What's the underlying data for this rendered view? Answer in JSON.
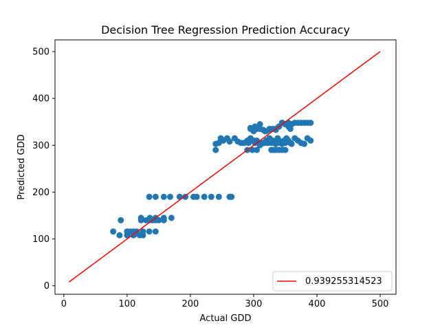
{
  "chart_data": {
    "type": "scatter",
    "title": "Decision Tree Regression Prediction Accuracy",
    "xlabel": "Actual GDD",
    "ylabel": "Predicted GDD",
    "xlim": [
      -14,
      525
    ],
    "ylim": [
      -18,
      525
    ],
    "xticks": [
      0,
      100,
      200,
      300,
      400,
      500
    ],
    "yticks": [
      0,
      100,
      200,
      300,
      400,
      500
    ],
    "grid": false,
    "legend_position": "lower-right",
    "series": [
      {
        "kind": "scatter",
        "color": "#1f77b4",
        "x": [
          78,
          88,
          90,
          100,
          100,
          100,
          105,
          110,
          110,
          112,
          115,
          120,
          122,
          122,
          125,
          125,
          130,
          135,
          135,
          136,
          140,
          145,
          145,
          145,
          150,
          158,
          158,
          170,
          135,
          145,
          158,
          168,
          183,
          192,
          205,
          210,
          222,
          233,
          245,
          262,
          265,
          240,
          240,
          245,
          248,
          252,
          258,
          262,
          270,
          275,
          280,
          285,
          290,
          292,
          295,
          298,
          300,
          302,
          305,
          308,
          312,
          315,
          318,
          320,
          322,
          325,
          328,
          330,
          332,
          335,
          338,
          340,
          342,
          345,
          348,
          350,
          352,
          355,
          358,
          360,
          365,
          370,
          375,
          380,
          385,
          390,
          295,
          300,
          305,
          310,
          315,
          320,
          325,
          330,
          335,
          340,
          345,
          350,
          355,
          360,
          365,
          370,
          375,
          380,
          385,
          390,
          290,
          298,
          305,
          328,
          332,
          335,
          340,
          345,
          350,
          295,
          302,
          310,
          318,
          325,
          335,
          340,
          345,
          350,
          355,
          358,
          310,
          315,
          320
        ],
        "y": [
          116,
          108,
          140,
          108,
          116,
          116,
          116,
          108,
          116,
          110,
          116,
          108,
          140,
          145,
          108,
          116,
          140,
          116,
          140,
          145,
          140,
          116,
          140,
          145,
          140,
          145,
          140,
          145,
          190,
          190,
          190,
          190,
          190,
          190,
          190,
          190,
          190,
          190,
          190,
          190,
          190,
          303,
          290,
          305,
          315,
          310,
          315,
          308,
          315,
          308,
          305,
          305,
          310,
          305,
          315,
          310,
          310,
          305,
          310,
          305,
          303,
          305,
          305,
          310,
          305,
          315,
          305,
          310,
          305,
          303,
          315,
          310,
          305,
          303,
          310,
          305,
          315,
          310,
          305,
          303,
          315,
          310,
          305,
          303,
          315,
          310,
          335,
          330,
          335,
          335,
          333,
          330,
          335,
          335,
          333,
          340,
          348,
          345,
          348,
          345,
          348,
          348,
          348,
          348,
          348,
          348,
          290,
          290,
          290,
          290,
          290,
          290,
          290,
          290,
          290,
          337,
          340,
          345,
          330,
          333,
          335,
          340,
          348,
          345,
          340,
          335,
          300,
          305,
          310
        ]
      },
      {
        "kind": "line",
        "name": "0.939255314523",
        "color": "#ff0000",
        "x": [
          8,
          500
        ],
        "y": [
          8,
          500
        ]
      }
    ]
  }
}
